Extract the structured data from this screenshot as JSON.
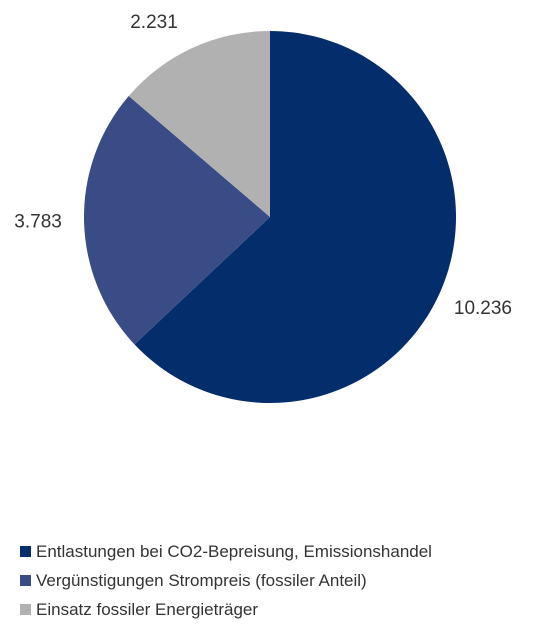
{
  "chart_data": {
    "type": "pie",
    "title": "",
    "categories": [
      "Entlastungen bei CO2-Bepreisung, Emissionshandel",
      "Vergünstigungen Strompreis (fossiler Anteil)",
      "Einsatz fossiler Energieträger"
    ],
    "values": [
      10.236,
      3.783,
      2.231
    ],
    "value_labels": [
      "10.236",
      "3.783",
      "2.231"
    ],
    "colors": [
      "#032d6b",
      "#3a4c85",
      "#b1b1b1"
    ],
    "start_angle_deg": 0,
    "direction": "clockwise",
    "legend_position": "bottom-left"
  }
}
